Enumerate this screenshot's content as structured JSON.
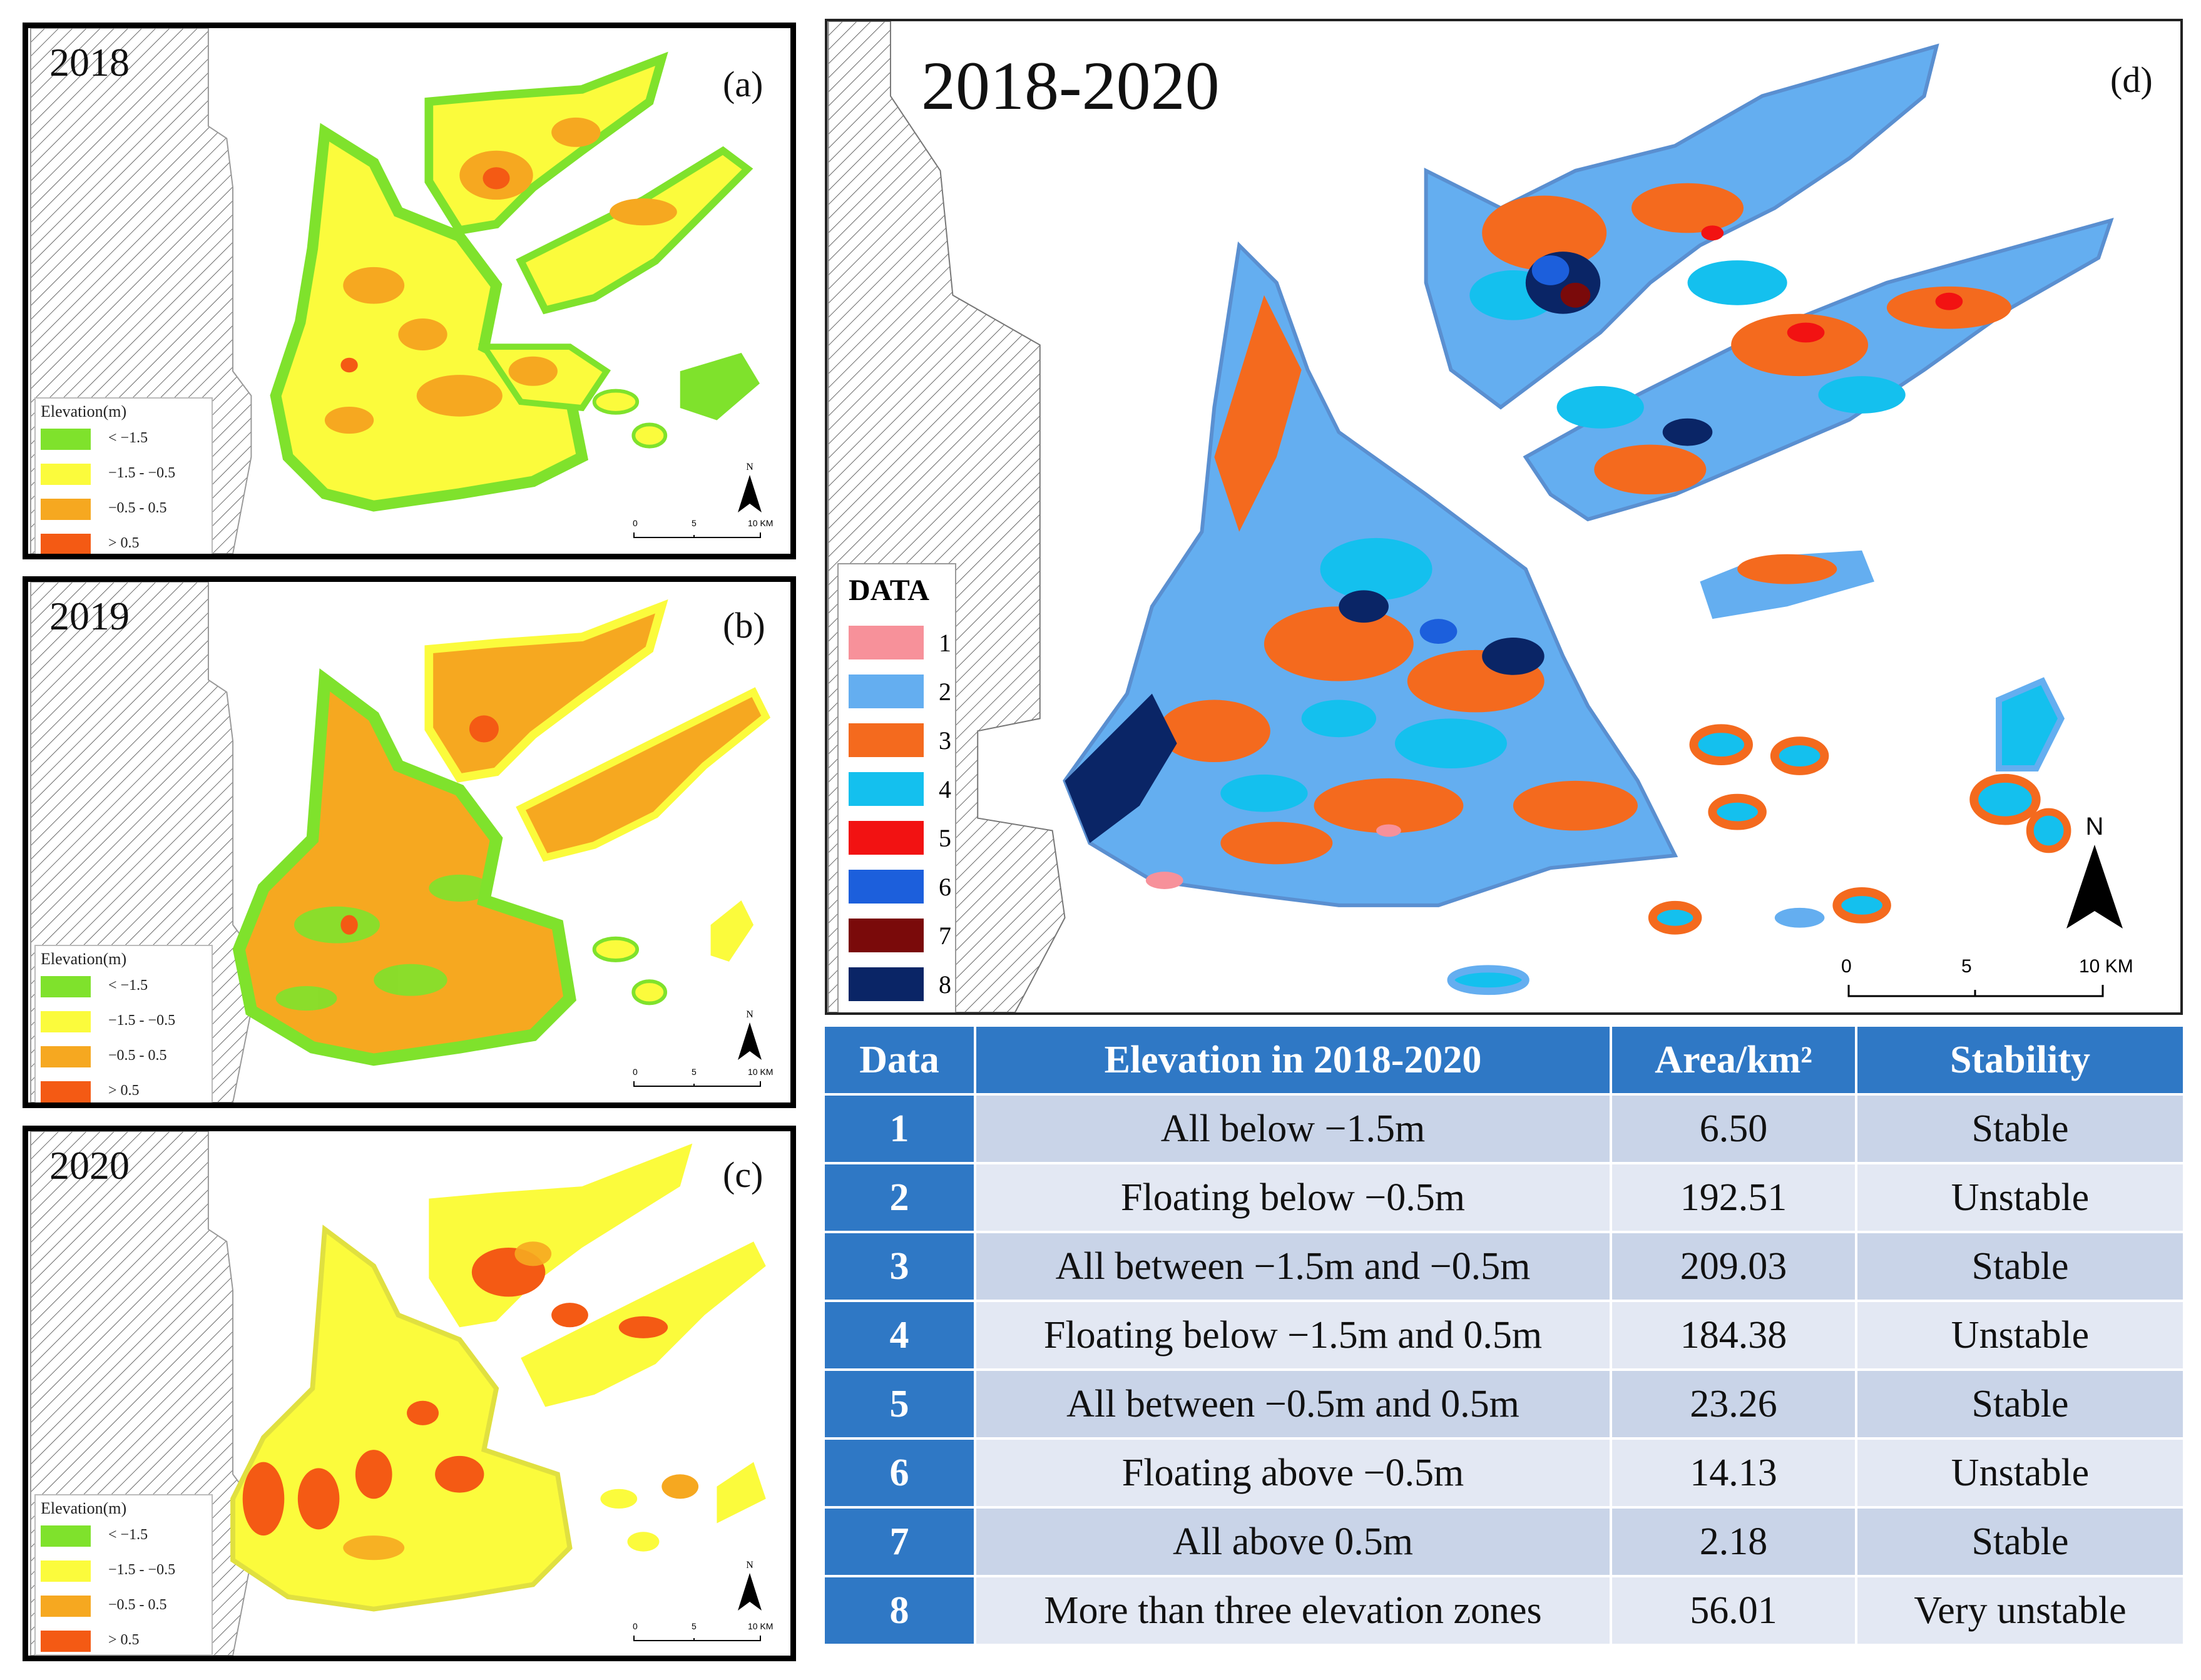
{
  "panels": {
    "a": {
      "year": "2018",
      "letter": "(a)"
    },
    "b": {
      "year": "2019",
      "letter": "(b)"
    },
    "c": {
      "year": "2020",
      "letter": "(c)"
    },
    "d": {
      "year": "2018-2020",
      "letter": "(d)"
    }
  },
  "small_legend": {
    "title": "Elevation(m)",
    "items": [
      {
        "label": "< −1.5",
        "color": "#7fe22c"
      },
      {
        "label": "−1.5 - −0.5",
        "color": "#fbfb3c"
      },
      {
        "label": "−0.5 - 0.5",
        "color": "#f6a820"
      },
      {
        "label": "> 0.5",
        "color": "#f45a14"
      }
    ]
  },
  "small_scale": {
    "labels": [
      "0",
      "5",
      "10 KM"
    ],
    "north": "N"
  },
  "big_legend": {
    "title": "DATA",
    "items": [
      {
        "label": "1",
        "color": "#f7919a"
      },
      {
        "label": "2",
        "color": "#64aef0"
      },
      {
        "label": "3",
        "color": "#f46a1e"
      },
      {
        "label": "4",
        "color": "#14c0ee"
      },
      {
        "label": "5",
        "color": "#f21212"
      },
      {
        "label": "6",
        "color": "#1c5fdc"
      },
      {
        "label": "7",
        "color": "#7a0a0a"
      },
      {
        "label": "8",
        "color": "#0a2566"
      }
    ]
  },
  "big_scale": {
    "labels": [
      "0",
      "5",
      "10 KM"
    ],
    "north": "N"
  },
  "table": {
    "headers": [
      "Data",
      "Elevation in 2018-2020",
      "Area/km²",
      "Stability"
    ],
    "rows": [
      {
        "data": "1",
        "elevation": "All below −1.5m",
        "area": "6.50",
        "stability": "Stable"
      },
      {
        "data": "2",
        "elevation": "Floating below −0.5m",
        "area": "192.51",
        "stability": "Unstable"
      },
      {
        "data": "3",
        "elevation": "All between −1.5m and −0.5m",
        "area": "209.03",
        "stability": "Stable"
      },
      {
        "data": "4",
        "elevation": "Floating below −1.5m and 0.5m",
        "area": "184.38",
        "stability": "Unstable"
      },
      {
        "data": "5",
        "elevation": "All between −0.5m and 0.5m",
        "area": "23.26",
        "stability": "Stable"
      },
      {
        "data": "6",
        "elevation": "Floating above −0.5m",
        "area": "14.13",
        "stability": "Unstable"
      },
      {
        "data": "7",
        "elevation": "All above 0.5m",
        "area": "2.18",
        "stability": "Stable"
      },
      {
        "data": "8",
        "elevation": "More than three elevation zones",
        "area": "56.01",
        "stability": "Very unstable"
      }
    ]
  }
}
